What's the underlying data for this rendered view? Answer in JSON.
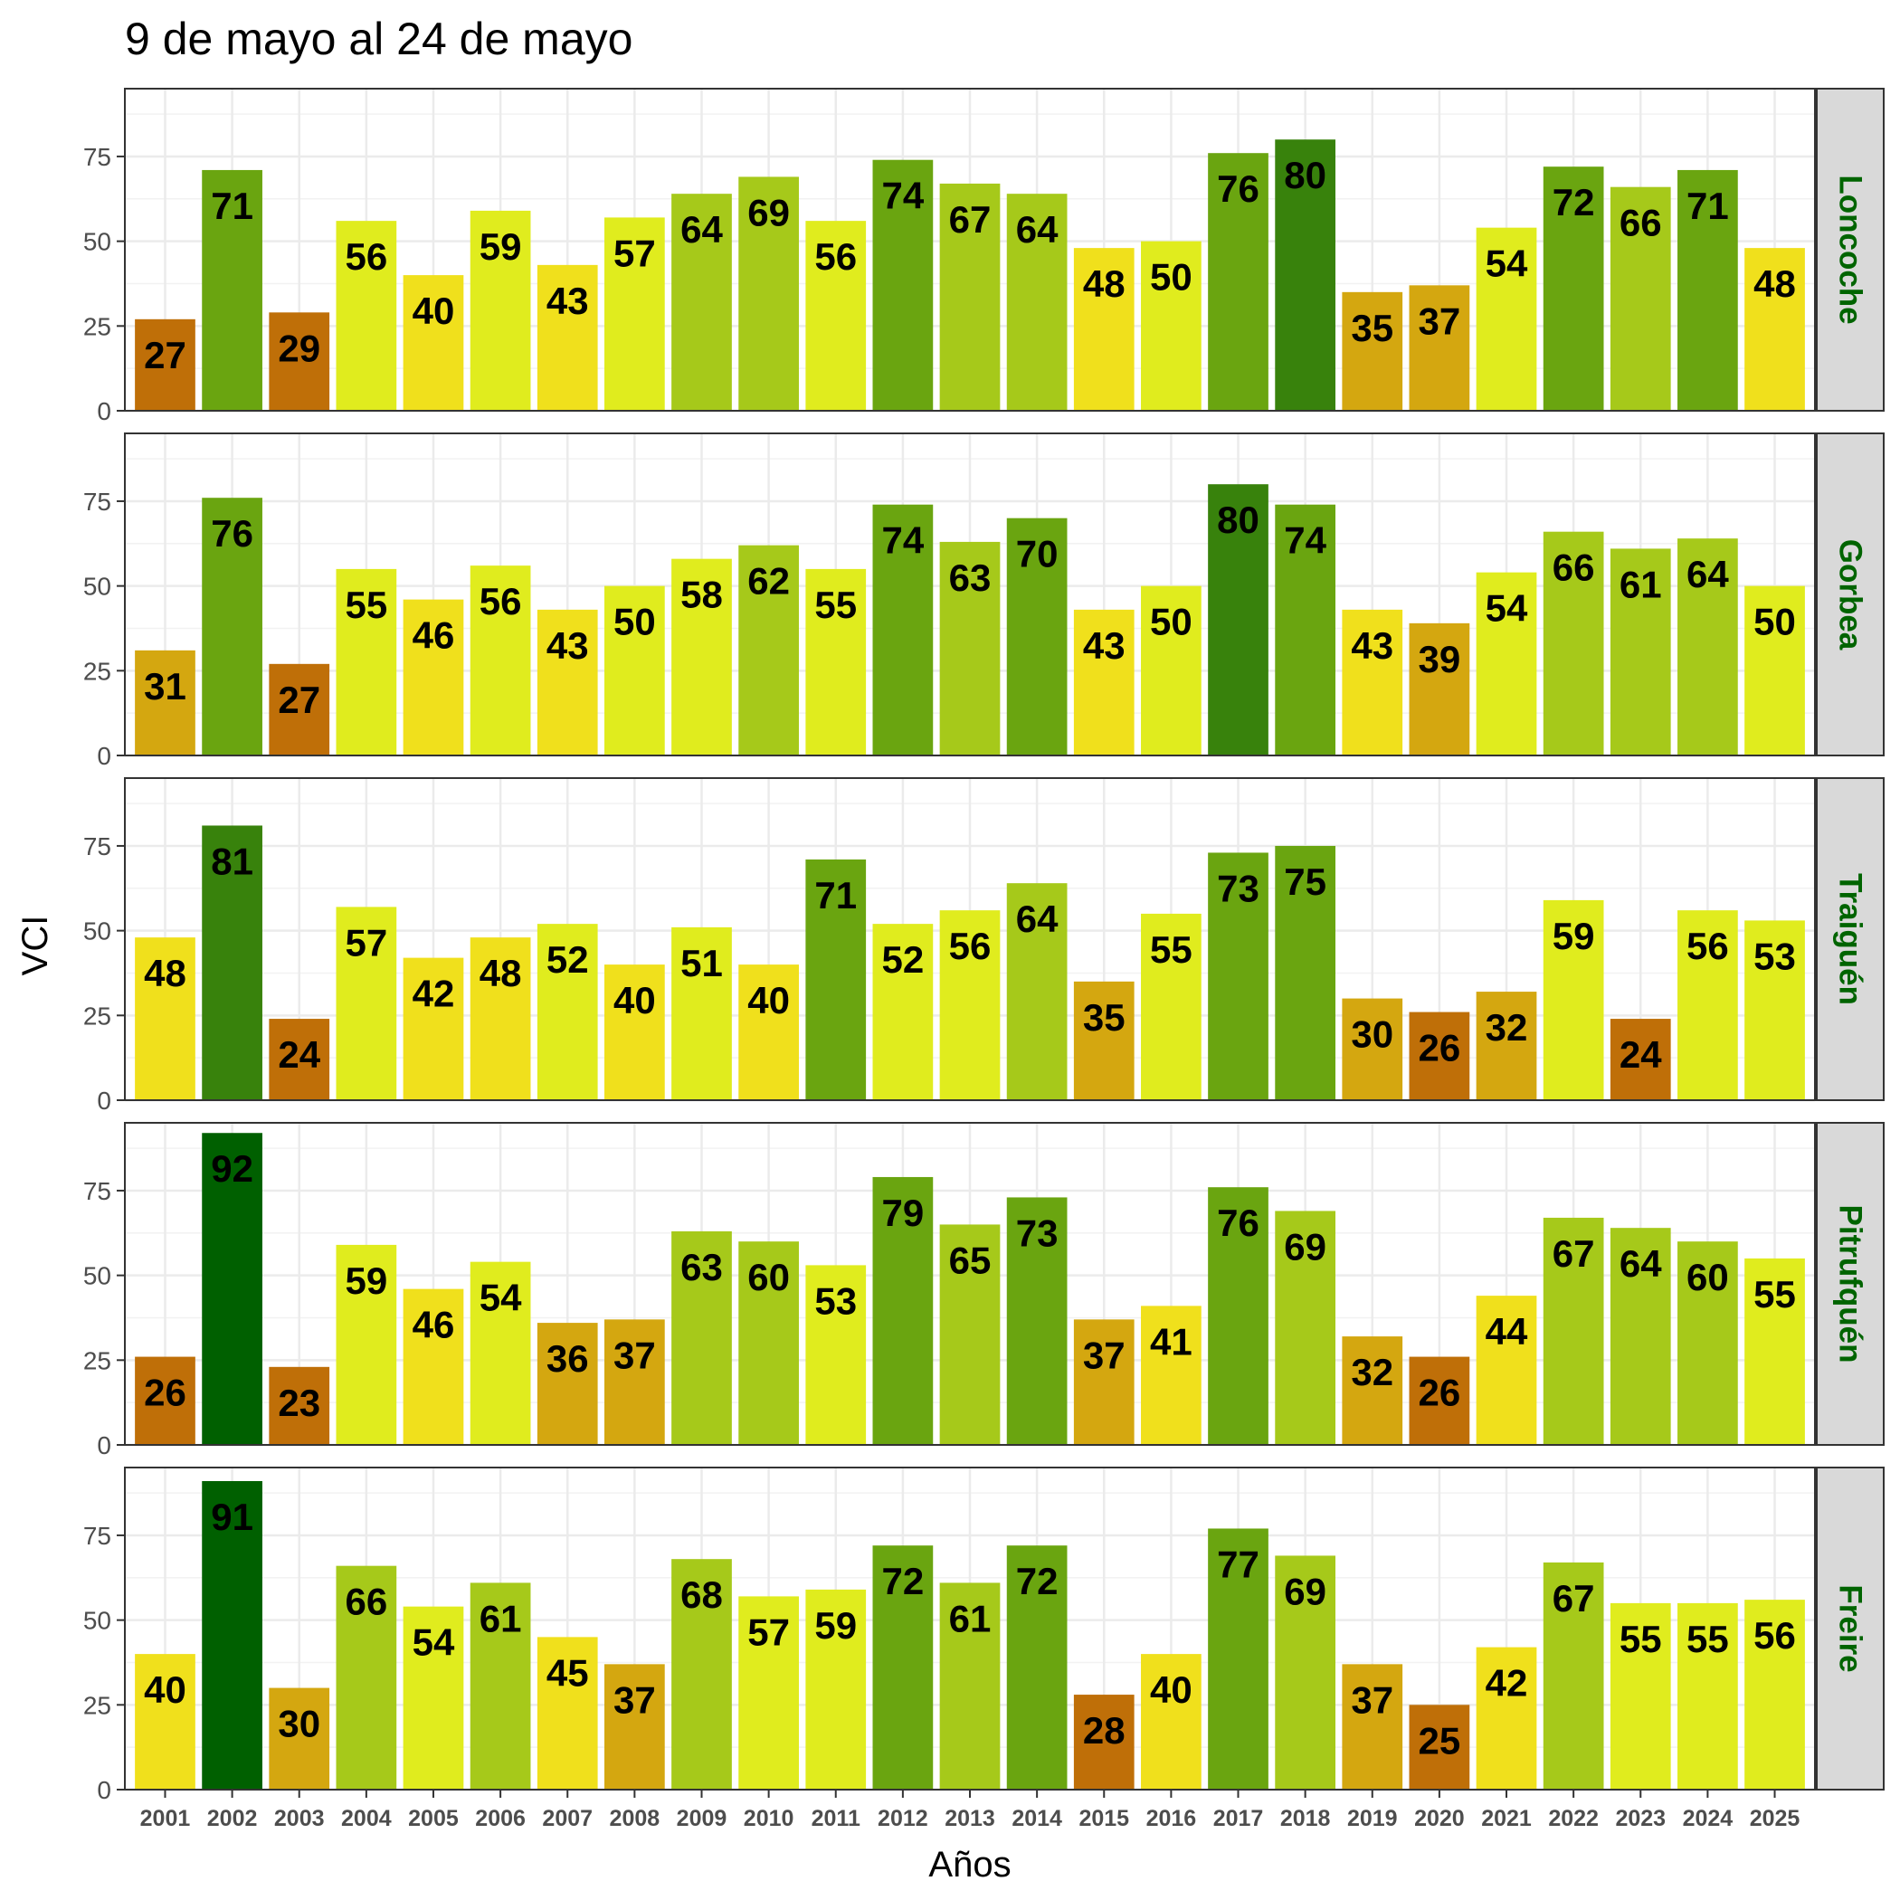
{
  "chart_data": {
    "type": "bar",
    "title": "9 de mayo al 24 de mayo",
    "xlabel": "Años",
    "ylabel": "VCI",
    "ylim": [
      0,
      95
    ],
    "yticks": [
      0,
      25,
      50,
      75
    ],
    "grid": true,
    "categories": [
      "2001",
      "2002",
      "2003",
      "2004",
      "2005",
      "2006",
      "2007",
      "2008",
      "2009",
      "2010",
      "2011",
      "2012",
      "2013",
      "2014",
      "2015",
      "2016",
      "2017",
      "2018",
      "2019",
      "2020",
      "2021",
      "2022",
      "2023",
      "2024",
      "2025"
    ],
    "color_scale": [
      {
        "min": 0,
        "max": 30,
        "color": "#bf6f08"
      },
      {
        "min": 30,
        "max": 40,
        "color": "#d4a710"
      },
      {
        "min": 40,
        "max": 50,
        "color": "#f0e01c"
      },
      {
        "min": 50,
        "max": 60,
        "color": "#e0ec1e"
      },
      {
        "min": 60,
        "max": 70,
        "color": "#a6c91a"
      },
      {
        "min": 70,
        "max": 80,
        "color": "#6aa510"
      },
      {
        "min": 80,
        "max": 90,
        "color": "#38820c"
      },
      {
        "min": 90,
        "max": 100,
        "color": "#006000"
      }
    ],
    "panels": [
      {
        "name": "Loncoche",
        "values": [
          27,
          71,
          29,
          56,
          40,
          59,
          43,
          57,
          64,
          69,
          56,
          74,
          67,
          64,
          48,
          50,
          76,
          80,
          35,
          37,
          54,
          72,
          66,
          71,
          48
        ]
      },
      {
        "name": "Gorbea",
        "values": [
          31,
          76,
          27,
          55,
          46,
          56,
          43,
          50,
          58,
          62,
          55,
          74,
          63,
          70,
          43,
          50,
          80,
          74,
          43,
          39,
          54,
          66,
          61,
          64,
          50
        ]
      },
      {
        "name": "Traiguén",
        "values": [
          48,
          81,
          24,
          57,
          42,
          48,
          52,
          40,
          51,
          40,
          71,
          52,
          56,
          64,
          35,
          55,
          73,
          75,
          30,
          26,
          32,
          59,
          24,
          56,
          53
        ]
      },
      {
        "name": "Pitrufquén",
        "values": [
          26,
          92,
          23,
          59,
          46,
          54,
          36,
          37,
          63,
          60,
          53,
          79,
          65,
          73,
          37,
          41,
          76,
          69,
          32,
          26,
          44,
          67,
          64,
          60,
          55
        ]
      },
      {
        "name": "Freire",
        "values": [
          40,
          91,
          30,
          66,
          54,
          61,
          45,
          37,
          68,
          57,
          59,
          72,
          61,
          72,
          28,
          40,
          77,
          69,
          37,
          25,
          42,
          67,
          55,
          55,
          56
        ]
      }
    ]
  }
}
